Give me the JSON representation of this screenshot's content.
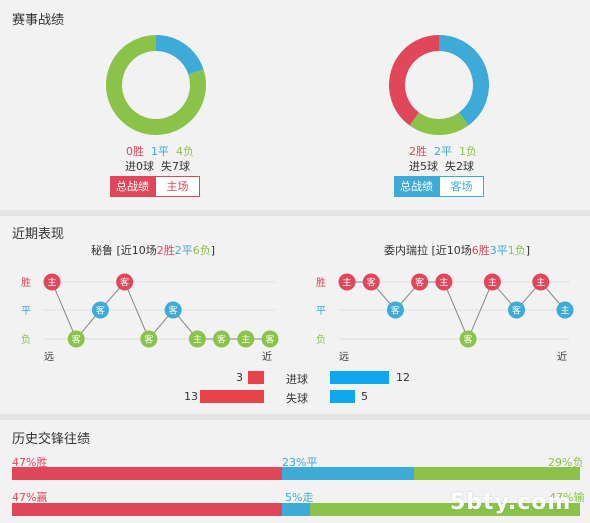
{
  "sections": {
    "record_title": "赛事战绩",
    "recent_title": "近期表现",
    "history_title": "历史交锋往绩"
  },
  "colors": {
    "win": "#e0475a",
    "draw": "#3daad8",
    "loss": "#8bc34a"
  },
  "left_team": {
    "name": "秘鲁",
    "summary_prefix": "[近10场",
    "wins": "2胜",
    "draws": "2平",
    "losses": "6负",
    "summary_suffix": "]",
    "donut": {
      "win": 0,
      "draw": 1,
      "loss": 4
    },
    "record_win": "0胜",
    "record_draw": "1平",
    "record_loss": "4负",
    "goals_line": "进0球  失7球",
    "btn_total": "总战绩",
    "btn_venue": "主场",
    "recent": [
      "主",
      "客",
      "客",
      "客",
      "客",
      "客",
      "主",
      "客",
      "主",
      "客"
    ],
    "results": [
      "W",
      "L",
      "D",
      "W",
      "L",
      "D",
      "L",
      "L",
      "L",
      "L"
    ]
  },
  "right_team": {
    "name": "委内瑞拉",
    "summary_prefix": "[近10场",
    "wins": "6胜",
    "draws": "3平",
    "losses": "1负",
    "summary_suffix": "]",
    "donut": {
      "win": 2,
      "draw": 2,
      "loss": 1
    },
    "record_win": "2胜",
    "record_draw": "2平",
    "record_loss": "1负",
    "goals_line": "进5球  失2球",
    "btn_total": "总战绩",
    "btn_venue": "客场",
    "recent": [
      "主",
      "客",
      "客",
      "客",
      "主",
      "客",
      "主",
      "客",
      "主",
      "主"
    ],
    "results": [
      "W",
      "W",
      "D",
      "W",
      "W",
      "L",
      "W",
      "D",
      "W",
      "D"
    ]
  },
  "axis": {
    "win": "胜",
    "draw": "平",
    "loss": "负",
    "far": "远",
    "near": "近"
  },
  "goals": {
    "scored_label": "进球",
    "conceded_label": "失球",
    "left_scored": 3,
    "left_conceded": 13,
    "right_scored": 12,
    "right_conceded": 5
  },
  "history": {
    "row1": {
      "left": "47%胜",
      "mid": "23%平",
      "right": "29%负",
      "win": 47,
      "draw": 23,
      "loss": 29
    },
    "row2": {
      "left": "47%赢",
      "mid": "5%走",
      "right": "47%输",
      "win": 47,
      "draw": 5,
      "loss": 47
    }
  },
  "watermark": "5bty.com"
}
